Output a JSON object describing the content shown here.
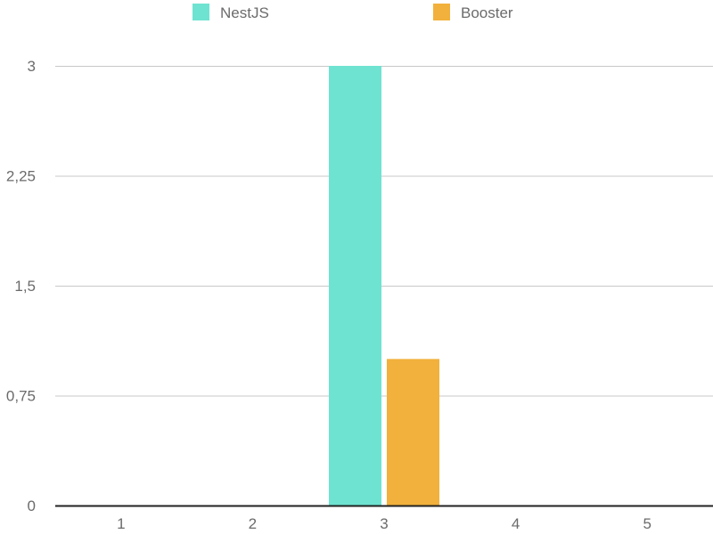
{
  "chart_data": {
    "type": "bar",
    "categories": [
      "1",
      "2",
      "3",
      "4",
      "5"
    ],
    "series": [
      {
        "name": "NestJS",
        "values": [
          0,
          0,
          3,
          0,
          0
        ],
        "color": "#6EE3D1"
      },
      {
        "name": "Booster",
        "values": [
          0,
          0,
          1,
          0,
          0
        ],
        "color": "#F2B13C"
      }
    ],
    "ylim": [
      0,
      3
    ],
    "yticks": [
      "0",
      "0,75",
      "1,5",
      "2,25",
      "3"
    ],
    "ytick_values": [
      0,
      0.75,
      1.5,
      2.25,
      3
    ],
    "grid": true,
    "legend_position": "top"
  }
}
